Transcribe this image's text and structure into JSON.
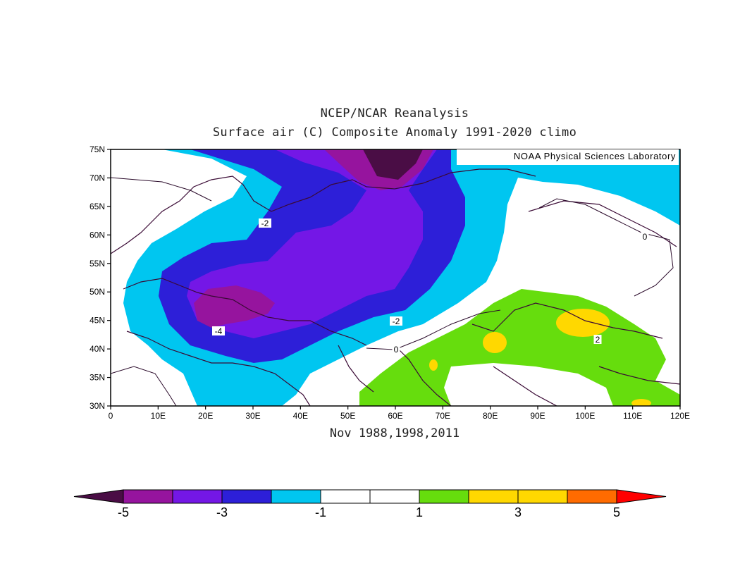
{
  "title_line1": "NCEP/NCAR Reanalysis",
  "title_line2": "Surface air (C) Composite Anomaly 1991-2020 climo",
  "subtitle": "Nov 1988,1998,2011",
  "credit": "NOAA Physical Sciences Laboratory",
  "lat_ticks": [
    "75N",
    "70N",
    "65N",
    "60N",
    "55N",
    "50N",
    "45N",
    "40N",
    "35N",
    "30N"
  ],
  "lon_ticks": [
    "0",
    "10E",
    "20E",
    "30E",
    "40E",
    "50E",
    "60E",
    "70E",
    "80E",
    "90E",
    "100E",
    "110E",
    "120E"
  ],
  "contour_labels": [
    "-2",
    "-4",
    "-2",
    "0",
    "0",
    "2"
  ],
  "colorbar": {
    "labels": [
      "-5",
      "-3",
      "-1",
      "1",
      "3",
      "5"
    ],
    "colors": [
      "#4a0d45",
      "#96149e",
      "#7417e6",
      "#2d1fd8",
      "#00c6f0",
      "#ffffff",
      "#ffffff",
      "#66dd0d",
      "#ffd800",
      "#ffd800",
      "#ff6b00",
      "#ff0000"
    ]
  }
}
